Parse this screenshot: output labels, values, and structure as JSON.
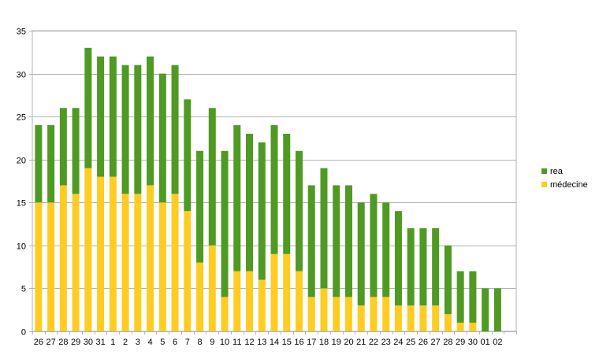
{
  "chart_data": {
    "type": "bar",
    "stacked": true,
    "title": "",
    "xlabel": "",
    "ylabel": "",
    "ylim": [
      0,
      35
    ],
    "yticks": [
      0,
      5,
      10,
      15,
      20,
      25,
      30,
      35
    ],
    "grid": "horizontal",
    "legend_position": "right",
    "categories": [
      "26",
      "27",
      "28",
      "29",
      "30",
      "31",
      "1",
      "2",
      "3",
      "4",
      "5",
      "6",
      "7",
      "8",
      "9",
      "10",
      "11",
      "12",
      "13",
      "14",
      "15",
      "16",
      "17",
      "18",
      "19",
      "20",
      "21",
      "22",
      "23",
      "24",
      "25",
      "26",
      "27",
      "28",
      "29",
      "30",
      "01",
      "02",
      ""
    ],
    "series": [
      {
        "name": "médecine",
        "color": "#ffcc22",
        "values": [
          15,
          15,
          17,
          16,
          19,
          18,
          18,
          16,
          16,
          17,
          15,
          16,
          14,
          8,
          10,
          4,
          7,
          7,
          6,
          9,
          9,
          7,
          4,
          5,
          4,
          4,
          3,
          4,
          4,
          3,
          3,
          3,
          3,
          2,
          1,
          1,
          0,
          0,
          0
        ]
      },
      {
        "name": "rea",
        "color": "#4f9a22",
        "values": [
          9,
          9,
          9,
          10,
          14,
          14,
          14,
          15,
          15,
          15,
          15,
          15,
          13,
          13,
          16,
          17,
          17,
          16,
          16,
          15,
          14,
          14,
          13,
          14,
          13,
          13,
          12,
          12,
          11,
          11,
          9,
          9,
          9,
          8,
          6,
          6,
          5,
          5,
          0
        ]
      }
    ],
    "legend": [
      {
        "name": "rea",
        "color": "#4f9a22"
      },
      {
        "name": "médecine",
        "color": "#ffcc22"
      }
    ]
  }
}
